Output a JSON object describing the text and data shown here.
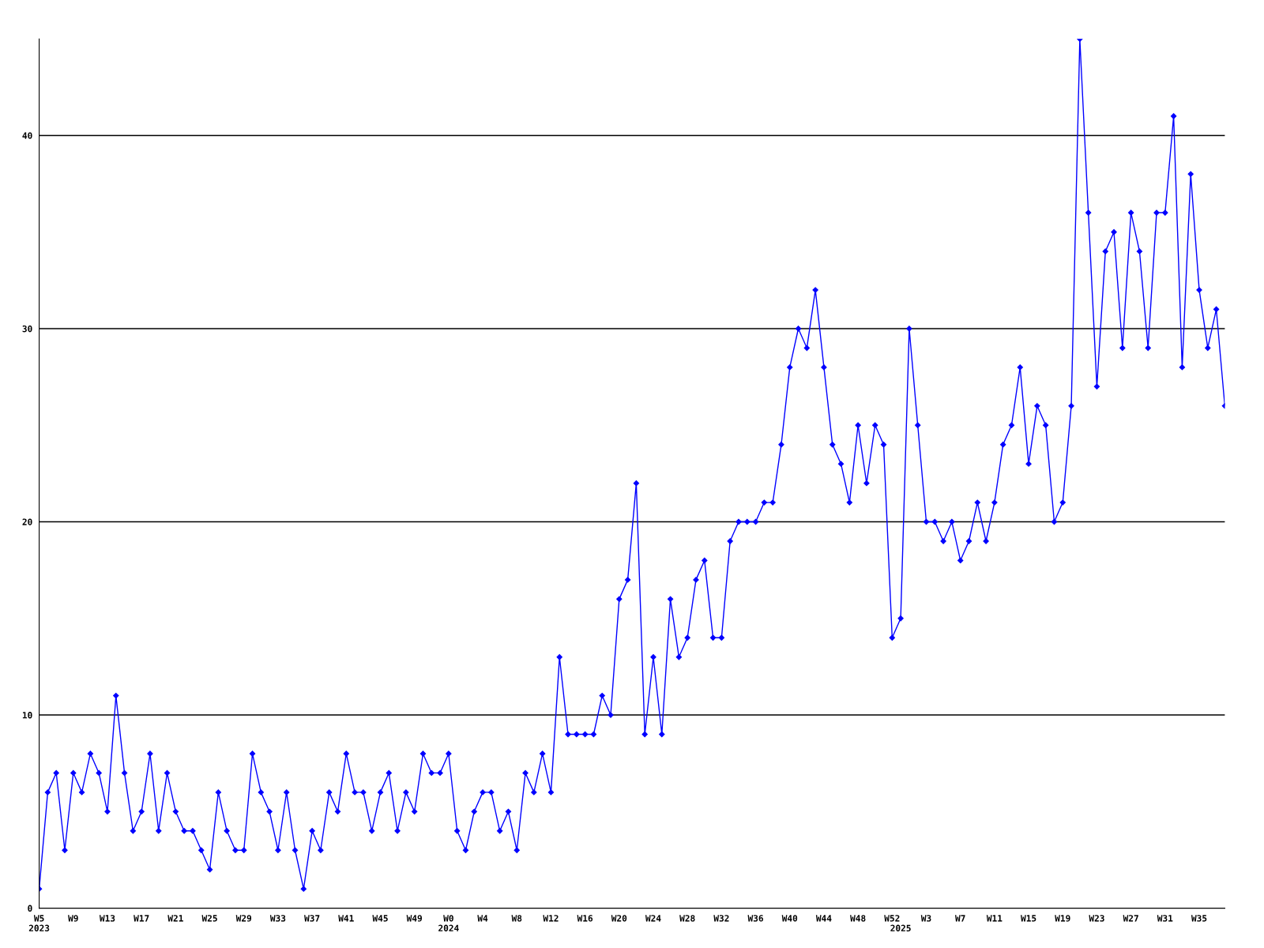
{
  "chart_data": {
    "type": "line",
    "categories": [
      "W5\n2023",
      null,
      null,
      null,
      "W9",
      null,
      null,
      null,
      "W13",
      null,
      null,
      null,
      "W17",
      null,
      null,
      null,
      "W21",
      null,
      null,
      null,
      "W25",
      null,
      null,
      null,
      "W29",
      null,
      null,
      null,
      "W33",
      null,
      null,
      null,
      "W37",
      null,
      null,
      null,
      "W41",
      null,
      null,
      null,
      "W45",
      null,
      null,
      null,
      "W49",
      null,
      null,
      null,
      "W0\n2024",
      null,
      null,
      null,
      "W4",
      null,
      null,
      null,
      "W8",
      null,
      null,
      null,
      "W12",
      null,
      null,
      null,
      "W16",
      null,
      null,
      null,
      "W20",
      null,
      null,
      null,
      "W24",
      null,
      null,
      null,
      "W28",
      null,
      null,
      null,
      "W32",
      null,
      null,
      null,
      "W36",
      null,
      null,
      null,
      "W40",
      null,
      null,
      null,
      "W44",
      null,
      null,
      null,
      "W48",
      null,
      null,
      null,
      "W52",
      "\n2025",
      null,
      null,
      "W3",
      null,
      null,
      null,
      "W7",
      null,
      null,
      null,
      "W11",
      null,
      null,
      null,
      "W15",
      null,
      null,
      null,
      "W19",
      null,
      null,
      null,
      "W23",
      null,
      null,
      null,
      "W27",
      null,
      null,
      null,
      "W31",
      null,
      null,
      null,
      "W35",
      null,
      null,
      null
    ],
    "series": [
      {
        "color": "#0000ff",
        "values": [
          1,
          6,
          7,
          3,
          7,
          6,
          8,
          7,
          5,
          11,
          7,
          4,
          5,
          8,
          4,
          7,
          5,
          4,
          4,
          3,
          2,
          6,
          4,
          3,
          3,
          8,
          6,
          5,
          3,
          6,
          3,
          1,
          4,
          3,
          6,
          5,
          8,
          6,
          6,
          4,
          6,
          7,
          4,
          6,
          5,
          8,
          7,
          7,
          8,
          4,
          3,
          5,
          6,
          6,
          4,
          5,
          3,
          7,
          6,
          8,
          6,
          13,
          9,
          9,
          9,
          9,
          11,
          10,
          16,
          17,
          22,
          9,
          13,
          9,
          16,
          13,
          14,
          17,
          18,
          14,
          14,
          19,
          20,
          20,
          20,
          21,
          21,
          24,
          28,
          30,
          29,
          32,
          28,
          24,
          23,
          21,
          25,
          22,
          25,
          24,
          14,
          15,
          30,
          25,
          20,
          20,
          19,
          20,
          18,
          19,
          21,
          19,
          21,
          24,
          25,
          28,
          23,
          26,
          25,
          20,
          21,
          26,
          45,
          36,
          27,
          34,
          35,
          29,
          36,
          34,
          29,
          36,
          36,
          41,
          28,
          38,
          32,
          29,
          31,
          26
        ]
      }
    ],
    "ylim": [
      0,
      45
    ],
    "yticks": [
      0,
      10,
      20,
      30,
      40
    ],
    "grid": "y",
    "marker": "diamond",
    "line_style": "solid"
  }
}
